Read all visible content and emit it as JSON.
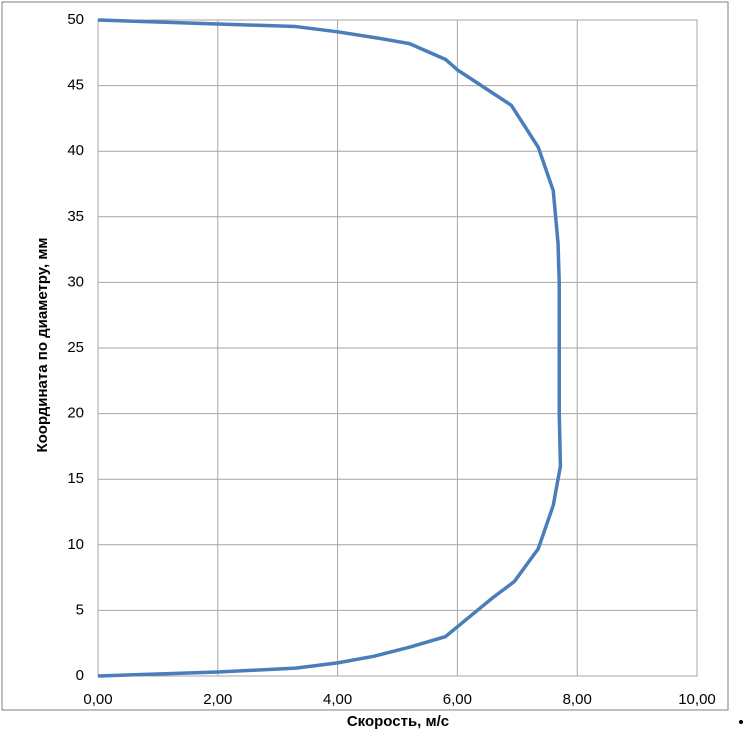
{
  "chart_data": {
    "type": "line",
    "xlabel": "Скорость, м/с",
    "ylabel": "Координата по диаметру, мм",
    "x": [
      0,
      2,
      3.3,
      4,
      4.6,
      5.2,
      5.8,
      6.2,
      6.6,
      6.95,
      7.35,
      7.6,
      7.72,
      7.7,
      7.7,
      7.7,
      7.68,
      7.6,
      7.35,
      6.9,
      6.0,
      5.8,
      5.2,
      4.7,
      4,
      3.3,
      2,
      0
    ],
    "series": [
      {
        "color": "#4a7ebb",
        "values": [
          0,
          0.3,
          0.6,
          1.0,
          1.5,
          2.2,
          3.0,
          4.5,
          6.0,
          7.2,
          9.7,
          13.0,
          16.0,
          20,
          25,
          30,
          33,
          37,
          40.3,
          43.5,
          46.2,
          47.0,
          48.2,
          48.6,
          49.1,
          49.5,
          49.7,
          50
        ]
      }
    ],
    "xlim": [
      0,
      10
    ],
    "xticks": [
      {
        "value": 0,
        "label": "0,00"
      },
      {
        "value": 2,
        "label": "2,00"
      },
      {
        "value": 4,
        "label": "4,00"
      },
      {
        "value": 6,
        "label": "6,00"
      },
      {
        "value": 8,
        "label": "8,00"
      },
      {
        "value": 10,
        "label": "10,00"
      }
    ],
    "ylim": [
      0,
      50
    ],
    "yticks": [
      0,
      5,
      10,
      15,
      20,
      25,
      30,
      35,
      40,
      45,
      50
    ],
    "grid": true
  }
}
